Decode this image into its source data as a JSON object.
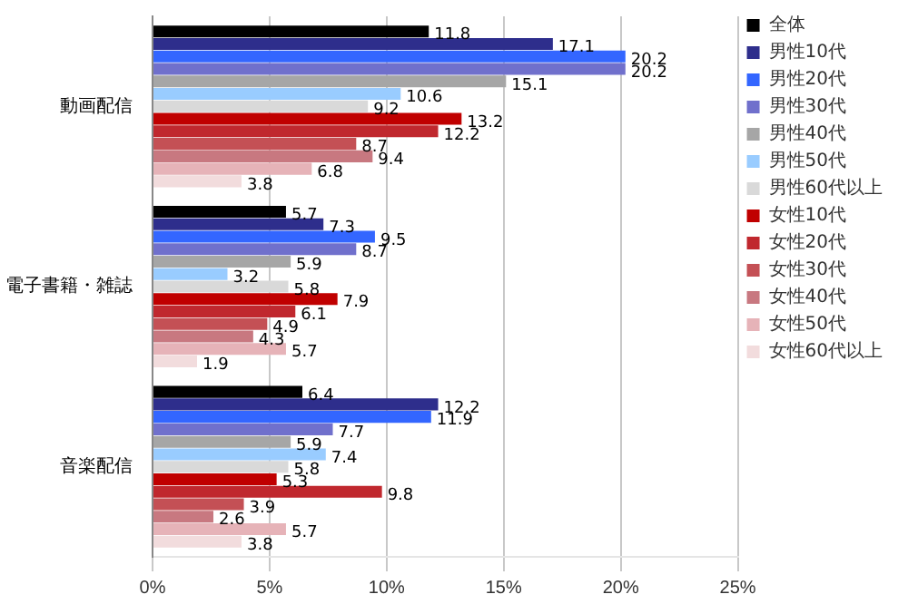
{
  "chart_data": {
    "type": "bar",
    "orientation": "horizontal",
    "categories": [
      "動画配信",
      "電子書籍・雑誌",
      "音楽配信"
    ],
    "series": [
      {
        "name": "全体",
        "color": "#000000",
        "values": [
          11.8,
          5.7,
          6.4
        ]
      },
      {
        "name": "男性10代",
        "color": "#2e2e8c",
        "values": [
          17.1,
          7.3,
          12.2
        ]
      },
      {
        "name": "男性20代",
        "color": "#3366ff",
        "values": [
          20.2,
          9.5,
          11.9
        ]
      },
      {
        "name": "男性30代",
        "color": "#7070cc",
        "values": [
          20.2,
          8.7,
          7.7
        ]
      },
      {
        "name": "男性40代",
        "color": "#a6a6a6",
        "values": [
          15.1,
          5.9,
          5.9
        ]
      },
      {
        "name": "男性50代",
        "color": "#99ccff",
        "values": [
          10.6,
          3.2,
          7.4
        ]
      },
      {
        "name": "男性60代以上",
        "color": "#d9d9d9",
        "values": [
          9.2,
          5.8,
          5.8
        ]
      },
      {
        "name": "女性10代",
        "color": "#c00000",
        "values": [
          13.2,
          7.9,
          5.3
        ]
      },
      {
        "name": "女性20代",
        "color": "#c0282e",
        "values": [
          12.2,
          6.1,
          9.8
        ]
      },
      {
        "name": "女性30代",
        "color": "#c45055",
        "values": [
          8.7,
          4.9,
          3.9
        ]
      },
      {
        "name": "女性40代",
        "color": "#c87880",
        "values": [
          9.4,
          4.3,
          2.6
        ]
      },
      {
        "name": "女性50代",
        "color": "#e6b3b8",
        "values": [
          6.8,
          5.7,
          5.7
        ]
      },
      {
        "name": "女性60代以上",
        "color": "#f2dcdd",
        "values": [
          3.8,
          1.9,
          3.8
        ]
      }
    ],
    "xlim": [
      0,
      25
    ],
    "xticks": [
      {
        "value": 0,
        "label": "0%"
      },
      {
        "value": 5,
        "label": "5%"
      },
      {
        "value": 10,
        "label": "10%"
      },
      {
        "value": 15,
        "label": "15%"
      },
      {
        "value": 20,
        "label": "20%"
      },
      {
        "value": 25,
        "label": "25%"
      }
    ],
    "grid": "x",
    "legend": "right",
    "data_labels": true
  }
}
